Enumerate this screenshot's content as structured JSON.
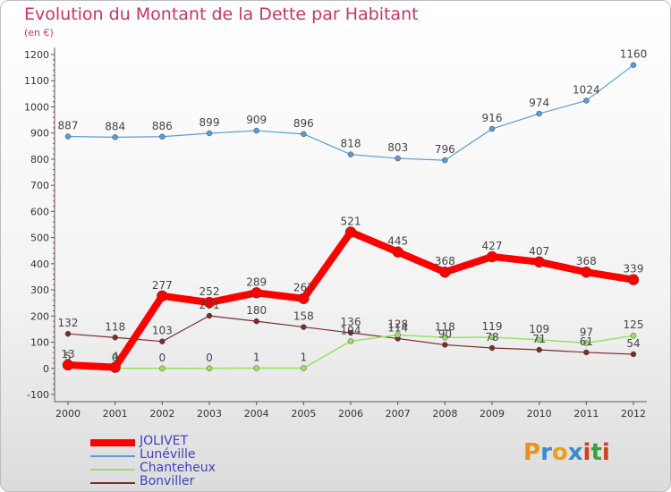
{
  "title": "Evolution du Montant de la Dette par Habitant",
  "subtitle": "(en €)",
  "logo": {
    "letters": [
      "P",
      "r",
      "o",
      "x",
      "i",
      "t",
      "i"
    ],
    "colors": [
      "#e89020",
      "#3b8bd0",
      "#e8a020",
      "#3b8bd0",
      "#d04020",
      "#3aa040",
      "#d04020"
    ]
  },
  "chart_data": {
    "type": "line",
    "title": "Evolution du Montant de la Dette par Habitant",
    "subtitle": "(en €)",
    "x": [
      "2000",
      "2001",
      "2002",
      "2003",
      "2004",
      "2005",
      "2006",
      "2007",
      "2008",
      "2009",
      "2010",
      "2011",
      "2012"
    ],
    "ylim": [
      -100,
      1200
    ],
    "yticks": [
      -100,
      0,
      100,
      200,
      300,
      400,
      500,
      600,
      700,
      800,
      900,
      1000,
      1100,
      1200
    ],
    "grid": false,
    "legend_position": "bottom-left",
    "series": [
      {
        "name": "Lunéville",
        "color": "#5a9bd5",
        "values": [
          887,
          884,
          886,
          899,
          909,
          896,
          818,
          803,
          796,
          916,
          974,
          1024,
          1160
        ],
        "labels": [
          "887",
          "884",
          "886",
          "899",
          "909",
          "896",
          "818",
          "803",
          "796",
          "916",
          "974",
          "1024",
          "1160"
        ]
      },
      {
        "name": "Bonviller",
        "color": "#7b2c2c",
        "values": [
          132,
          118,
          103,
          201,
          180,
          158,
          136,
          114,
          90,
          78,
          71,
          61,
          54
        ],
        "labels": [
          "132",
          "118",
          "103",
          "201",
          "180",
          "158",
          "136",
          "114",
          "90",
          "78",
          "71",
          "61",
          "54"
        ]
      },
      {
        "name": "Chanteheux",
        "color": "#99e066",
        "values": [
          5,
          0,
          0,
          0,
          1,
          1,
          104,
          128,
          118,
          119,
          109,
          97,
          125
        ],
        "labels": [
          "5",
          "0",
          "0",
          "0",
          "1",
          "1",
          "104",
          "128",
          "118",
          "119",
          "109",
          "97",
          "125"
        ]
      },
      {
        "name": "JOLIVET",
        "color": "#ff0000",
        "values": [
          13,
          4,
          277,
          252,
          289,
          267,
          521,
          445,
          368,
          427,
          407,
          368,
          339
        ],
        "labels": [
          "13",
          "4",
          "277",
          "252",
          "289",
          "267",
          "521",
          "445",
          "368",
          "427",
          "407",
          "368",
          "339"
        ]
      }
    ],
    "legend_order": [
      "JOLIVET",
      "Lunéville",
      "Chanteheux",
      "Bonviller"
    ]
  }
}
